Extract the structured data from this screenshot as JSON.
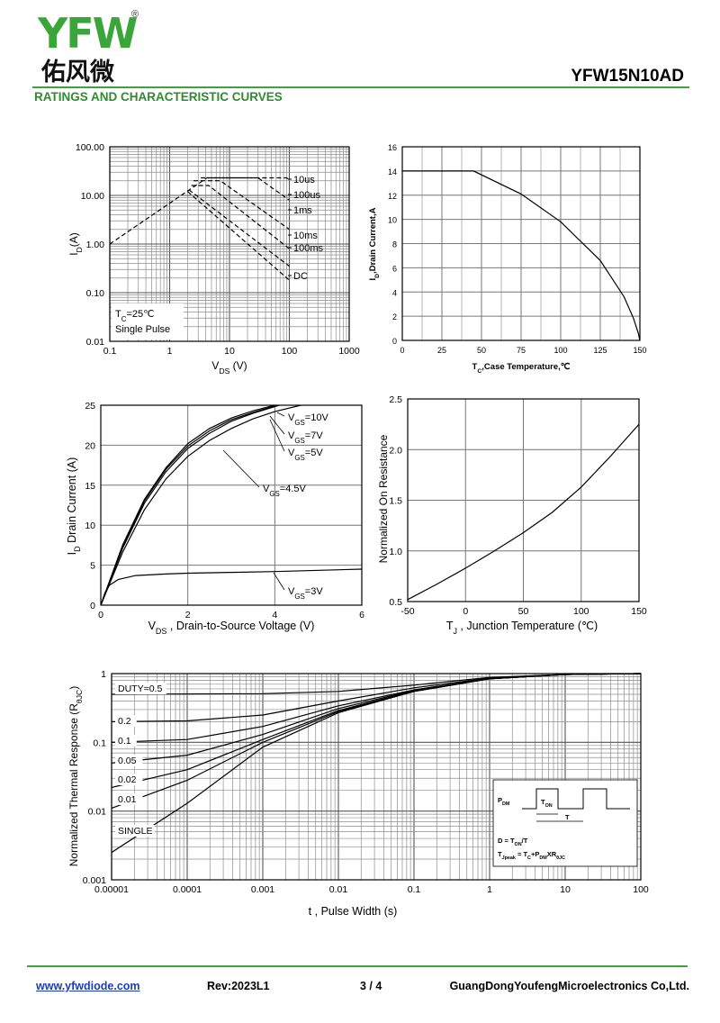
{
  "header": {
    "logo_text": "YFW",
    "logo_reg": "®",
    "logo_cn": "佑风微",
    "part_number": "YFW15N10AD",
    "section_title": "RATINGS AND CHARACTERISTIC CURVES"
  },
  "footer": {
    "website": "www.yfwdiode.com",
    "revision": "Rev:2023L1",
    "page": "3 / 4",
    "company": "GuangDongYoufengMicroelectronics Co,Ltd."
  },
  "chart_data": [
    {
      "id": "soa",
      "type": "line",
      "x_scale": "log",
      "y_scale": "log",
      "xlim": [
        0.1,
        1000
      ],
      "ylim": [
        0.01,
        100
      ],
      "x_ticks": [
        "0.1",
        "1",
        "10",
        "100",
        "1000"
      ],
      "y_ticks": [
        "0.01",
        "0.10",
        "1.00",
        "10.00",
        "100.00"
      ],
      "xlabel": "VDS (V)",
      "ylabel": "ID(A)",
      "annotations": [
        "TC=25℃",
        "Single Pulse"
      ],
      "line_style": "dashed",
      "series": [
        {
          "name": "10us",
          "points": [
            [
              0.1,
              1.0
            ],
            [
              4.2,
              23
            ],
            [
              90,
              23
            ],
            [
              100,
              21
            ]
          ]
        },
        {
          "name": "100us",
          "points": [
            [
              3.3,
              23
            ],
            [
              30,
              23
            ],
            [
              100,
              8
            ]
          ]
        },
        {
          "name": "1ms",
          "points": [
            [
              2.5,
              20
            ],
            [
              7,
              20
            ],
            [
              100,
              2
            ]
          ]
        },
        {
          "name": "10ms",
          "points": [
            [
              2.3,
              16
            ],
            [
              4.5,
              16
            ],
            [
              100,
              0.8
            ]
          ]
        },
        {
          "name": "100ms",
          "points": [
            [
              2.1,
              13
            ],
            [
              100,
              0.35
            ]
          ]
        },
        {
          "name": "DC",
          "points": [
            [
              2.0,
              12
            ],
            [
              100,
              0.18
            ]
          ]
        }
      ]
    },
    {
      "id": "id-vs-tc",
      "type": "line",
      "xlim": [
        0,
        150
      ],
      "ylim": [
        0,
        16
      ],
      "x_ticks": [
        "0",
        "25",
        "50",
        "75",
        "100",
        "125",
        "150"
      ],
      "y_ticks": [
        "0",
        "2",
        "4",
        "6",
        "8",
        "10",
        "12",
        "14",
        "16"
      ],
      "xlabel": "TC,Case Temperature,℃",
      "ylabel": "ID,Drain Current,A",
      "series": [
        {
          "name": "",
          "points": [
            [
              0,
              14
            ],
            [
              45,
              14
            ],
            [
              75,
              12.1
            ],
            [
              100,
              9.8
            ],
            [
              125,
              6.6
            ],
            [
              140,
              3.6
            ],
            [
              146,
              1.8
            ],
            [
              149,
              0.6
            ],
            [
              150,
              0
            ]
          ]
        }
      ]
    },
    {
      "id": "output-characteristics",
      "type": "line",
      "xlim": [
        0,
        6
      ],
      "ylim": [
        0,
        25
      ],
      "x_ticks": [
        "0",
        "2",
        "4",
        "6"
      ],
      "y_ticks": [
        "0",
        "5",
        "10",
        "15",
        "20",
        "25"
      ],
      "xlabel": "VDS , Drain-to-Source Voltage (V)",
      "ylabel": "ID Drain Current (A)",
      "series": [
        {
          "name": "VGS=10V",
          "points": [
            [
              0,
              0
            ],
            [
              0.5,
              7.5
            ],
            [
              1,
              13.2
            ],
            [
              1.5,
              17.2
            ],
            [
              2,
              20.2
            ],
            [
              2.5,
              22.1
            ],
            [
              3,
              23.4
            ],
            [
              3.5,
              24.3
            ],
            [
              4,
              25
            ]
          ]
        },
        {
          "name": "VGS=7V",
          "points": [
            [
              0,
              0
            ],
            [
              0.5,
              7.3
            ],
            [
              1,
              13
            ],
            [
              1.5,
              17
            ],
            [
              2,
              19.9
            ],
            [
              2.5,
              21.8
            ],
            [
              3,
              23.2
            ],
            [
              3.5,
              24.1
            ],
            [
              4,
              24.9
            ]
          ]
        },
        {
          "name": "VGS=5V",
          "points": [
            [
              0,
              0
            ],
            [
              0.5,
              7.1
            ],
            [
              1,
              12.7
            ],
            [
              1.5,
              16.7
            ],
            [
              2,
              19.6
            ],
            [
              2.5,
              21.5
            ],
            [
              3,
              23
            ],
            [
              3.5,
              24
            ],
            [
              4.1,
              25
            ]
          ]
        },
        {
          "name": "VGS=4.5V",
          "points": [
            [
              0,
              0
            ],
            [
              0.5,
              6.6
            ],
            [
              1,
              11.9
            ],
            [
              1.5,
              15.8
            ],
            [
              2,
              18.6
            ],
            [
              2.5,
              20.6
            ],
            [
              3,
              22.1
            ],
            [
              3.5,
              23.3
            ],
            [
              4,
              24.2
            ],
            [
              4.6,
              25
            ]
          ]
        },
        {
          "name": "VGS=3V",
          "points": [
            [
              0,
              0
            ],
            [
              0.1,
              1.6
            ],
            [
              0.2,
              2.5
            ],
            [
              0.4,
              3.2
            ],
            [
              0.8,
              3.7
            ],
            [
              1.5,
              3.9
            ],
            [
              2,
              4.0
            ],
            [
              3,
              4.1
            ],
            [
              4,
              4.2
            ],
            [
              6,
              4.5
            ]
          ]
        }
      ]
    },
    {
      "id": "rds-on-vs-tj",
      "type": "line",
      "xlim": [
        -50,
        150
      ],
      "ylim": [
        0.5,
        2.5
      ],
      "x_ticks": [
        "-50",
        "0",
        "50",
        "100",
        "150"
      ],
      "y_ticks": [
        "0.5",
        "1.0",
        "1.5",
        "2.0",
        "2.5"
      ],
      "xlabel": "TJ , Junction Temperature (℃)",
      "ylabel": "Normalized On Resistance",
      "series": [
        {
          "name": "",
          "points": [
            [
              -50,
              0.52
            ],
            [
              -25,
              0.67
            ],
            [
              0,
              0.83
            ],
            [
              25,
              1.0
            ],
            [
              50,
              1.18
            ],
            [
              75,
              1.38
            ],
            [
              100,
              1.63
            ],
            [
              125,
              1.93
            ],
            [
              150,
              2.25
            ]
          ]
        }
      ]
    },
    {
      "id": "thermal-response",
      "type": "line",
      "x_scale": "log",
      "y_scale": "log",
      "xlim": [
        1e-05,
        100
      ],
      "ylim": [
        0.001,
        1
      ],
      "x_ticks": [
        "0.00001",
        "0.0001",
        "0.001",
        "0.01",
        "0.1",
        "1",
        "10",
        "100"
      ],
      "y_ticks": [
        "0.001",
        "0.01",
        "0.1",
        "1"
      ],
      "xlabel": "t , Pulse Width (s)",
      "ylabel": "Normalized Thermal Response (RθJC)",
      "inset": {
        "pdm": "PDM",
        "ton": "TON",
        "t": "T",
        "duty_eq": "D = TON/T",
        "tpeak_eq": "Tjpeak = TC+PDMXRθJC"
      },
      "series": [
        {
          "name": "DUTY=0.5",
          "points": [
            [
              1e-05,
              0.5
            ],
            [
              0.001,
              0.51
            ],
            [
              0.01,
              0.55
            ],
            [
              0.1,
              0.68
            ],
            [
              1,
              0.88
            ],
            [
              10,
              0.97
            ],
            [
              100,
              1.0
            ]
          ]
        },
        {
          "name": "0.2",
          "points": [
            [
              1e-05,
              0.2
            ],
            [
              0.0001,
              0.205
            ],
            [
              0.001,
              0.25
            ],
            [
              0.01,
              0.4
            ],
            [
              0.1,
              0.62
            ],
            [
              1,
              0.86
            ],
            [
              10,
              0.97
            ],
            [
              100,
              1.0
            ]
          ]
        },
        {
          "name": "0.1",
          "points": [
            [
              1e-05,
              0.1
            ],
            [
              0.0001,
              0.11
            ],
            [
              0.001,
              0.17
            ],
            [
              0.01,
              0.34
            ],
            [
              0.1,
              0.58
            ],
            [
              1,
              0.85
            ],
            [
              10,
              0.97
            ],
            [
              100,
              1.0
            ]
          ]
        },
        {
          "name": "0.05",
          "points": [
            [
              1e-05,
              0.05
            ],
            [
              0.0001,
              0.065
            ],
            [
              0.001,
              0.13
            ],
            [
              0.01,
              0.31
            ],
            [
              0.1,
              0.57
            ],
            [
              1,
              0.84
            ],
            [
              10,
              0.97
            ],
            [
              100,
              1.0
            ]
          ]
        },
        {
          "name": "0.02",
          "points": [
            [
              1e-05,
              0.022
            ],
            [
              0.0001,
              0.04
            ],
            [
              0.001,
              0.11
            ],
            [
              0.01,
              0.29
            ],
            [
              0.1,
              0.56
            ],
            [
              1,
              0.84
            ],
            [
              10,
              0.97
            ],
            [
              100,
              1.0
            ]
          ]
        },
        {
          "name": "0.01",
          "points": [
            [
              1e-05,
              0.011
            ],
            [
              0.0001,
              0.028
            ],
            [
              0.001,
              0.1
            ],
            [
              0.01,
              0.28
            ],
            [
              0.1,
              0.55
            ],
            [
              1,
              0.84
            ],
            [
              10,
              0.97
            ],
            [
              100,
              1.0
            ]
          ]
        },
        {
          "name": "SINGLE",
          "points": [
            [
              1e-05,
              0.0025
            ],
            [
              0.0001,
              0.013
            ],
            [
              0.001,
              0.085
            ],
            [
              0.01,
              0.27
            ],
            [
              0.1,
              0.55
            ],
            [
              1,
              0.84
            ],
            [
              10,
              0.97
            ],
            [
              100,
              1.0
            ]
          ]
        }
      ]
    }
  ]
}
